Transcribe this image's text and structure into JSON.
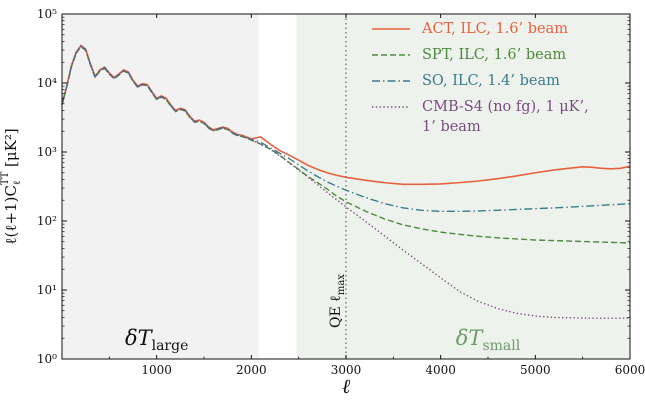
{
  "chart_data": {
    "type": "line",
    "title": "",
    "xlabel": "ℓ",
    "ylabel": "ℓ(ℓ+1)C",
    "ylabel_sub": "ℓ",
    "ylabel_sup": "TT",
    "ylabel_unit": " [μK²]",
    "xlim": [
      0,
      6000
    ],
    "ylim": [
      1,
      100000
    ],
    "yscale": "log",
    "x_ticks": [
      1000,
      2000,
      3000,
      4000,
      5000,
      6000
    ],
    "x_tick_labels": [
      "1000",
      "2000",
      "3000",
      "4000",
      "5000",
      "6000"
    ],
    "y_ticks": [
      1,
      10,
      100,
      1000,
      10000,
      100000
    ],
    "y_tick_labels": [
      "10⁰",
      "10¹",
      "10²",
      "10³",
      "10⁴",
      "10⁵"
    ],
    "regions": [
      {
        "x": [
          0,
          2075
        ],
        "label_main": "δT",
        "label_sub": "large",
        "color": "#f2f2f2",
        "label_color": "#111111",
        "label_x": 1000
      },
      {
        "x": [
          2475,
          6000
        ],
        "label_main": "δT",
        "label_sub": "small",
        "color": "#eef2ec",
        "label_color": "#6f9a6a",
        "label_x": 4500
      }
    ],
    "vline": {
      "x": 3000,
      "label": "QE ℓ",
      "label_sub": "max",
      "style": "dotted"
    },
    "legend_position": "upper-right",
    "series": [
      {
        "name": "ACT, ILC, 1.6’ beam",
        "color": "#e8613f",
        "dash": "solid",
        "x": [
          2000,
          2100,
          2200,
          2300,
          2400,
          2500,
          2600,
          2700,
          2800,
          2900,
          3000,
          3200,
          3400,
          3600,
          3800,
          4000,
          4200,
          4400,
          4600,
          4800,
          5000,
          5200,
          5400,
          5500,
          5600,
          5700,
          5800,
          5900,
          6000
        ],
        "y": [
          2000,
          1650,
          1300,
          1050,
          900,
          760,
          640,
          560,
          500,
          460,
          430,
          390,
          360,
          340,
          340,
          345,
          360,
          380,
          410,
          450,
          500,
          550,
          590,
          610,
          600,
          580,
          570,
          580,
          620
        ]
      },
      {
        "name": "SPT, ILC, 1.6’ beam",
        "color": "#4e8a3e",
        "dash": "dashed",
        "x": [
          2000,
          2100,
          2200,
          2300,
          2400,
          2500,
          2600,
          2700,
          2800,
          2900,
          3000,
          3200,
          3400,
          3600,
          3800,
          4000,
          4200,
          4400,
          4600,
          4800,
          5000,
          5200,
          5400,
          5600,
          5800,
          6000
        ],
        "y": [
          1650,
          1300,
          1100,
          900,
          700,
          560,
          440,
          360,
          290,
          230,
          190,
          140,
          108,
          88,
          77,
          69,
          64,
          60,
          57,
          55,
          53,
          52,
          51,
          50,
          49,
          48
        ]
      },
      {
        "name": "SO, ILC, 1.4’ beam",
        "color": "#3a7b8c",
        "dash": "dashdot",
        "x": [
          2000,
          2100,
          2200,
          2300,
          2400,
          2500,
          2600,
          2700,
          2800,
          2900,
          3000,
          3200,
          3400,
          3600,
          3800,
          4000,
          4200,
          4400,
          4600,
          4800,
          5000,
          5200,
          5400,
          5600,
          5800,
          6000
        ],
        "y": [
          1700,
          1380,
          1150,
          960,
          800,
          650,
          530,
          440,
          370,
          320,
          280,
          220,
          180,
          155,
          143,
          138,
          138,
          140,
          143,
          147,
          151,
          155,
          160,
          166,
          172,
          178
        ]
      },
      {
        "name": "CMB-S4 (no fg), 1 μK’, 1’ beam",
        "name_lines": [
          "CMB-S4 (no fg), 1 μK’,",
          "1’ beam"
        ],
        "color": "#7b4d83",
        "dash": "dotted",
        "x": [
          2000,
          2200,
          2400,
          2600,
          2800,
          3000,
          3200,
          3400,
          3600,
          3800,
          4000,
          4200,
          4400,
          4600,
          4800,
          5000,
          5200,
          5400,
          5600,
          5800,
          6000
        ],
        "y": [
          1600,
          1100,
          700,
          430,
          260,
          160,
          100,
          62,
          38,
          24,
          15,
          9.5,
          6.8,
          5.4,
          4.6,
          4.2,
          4.0,
          3.95,
          3.9,
          3.9,
          3.9
        ]
      }
    ],
    "common_curve": {
      "x": [
        0,
        50,
        100,
        150,
        200,
        250,
        300,
        350,
        400,
        450,
        500,
        550,
        600,
        650,
        700,
        750,
        800,
        850,
        900,
        950,
        1000,
        1050,
        1100,
        1150,
        1200,
        1250,
        1300,
        1350,
        1400,
        1450,
        1500,
        1550,
        1600,
        1650,
        1700,
        1750,
        1800,
        1850,
        1900,
        1950,
        2000
      ],
      "y": [
        5000,
        9000,
        18000,
        28000,
        35000,
        31000,
        19000,
        12500,
        15500,
        17000,
        14000,
        12000,
        13500,
        15500,
        14500,
        11000,
        9000,
        9800,
        9500,
        7500,
        6000,
        6500,
        6000,
        4800,
        4000,
        4300,
        4100,
        3300,
        2800,
        2900,
        2700,
        2300,
        2100,
        2200,
        2300,
        2200,
        1950,
        1800,
        1750,
        1650,
        1550
      ]
    }
  }
}
